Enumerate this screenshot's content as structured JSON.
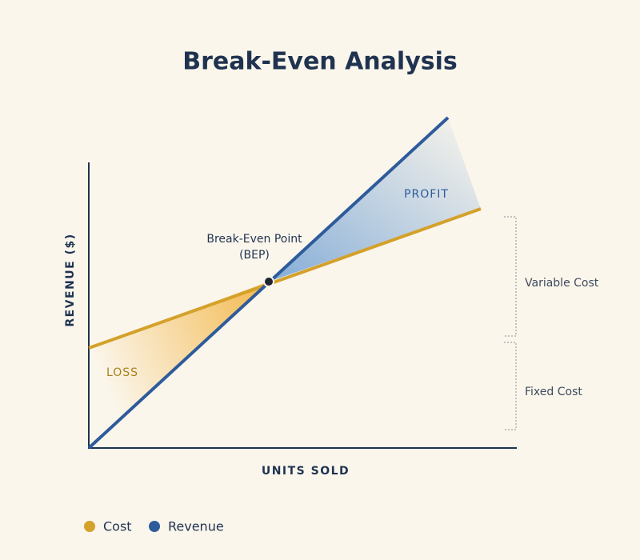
{
  "title": "Break-Even Analysis",
  "axes": {
    "y_label": "REVENUE ($)",
    "x_label": "UNITS SOLD"
  },
  "annotations": {
    "bep": [
      "Break-Even Point",
      "(BEP)"
    ],
    "profit": "PROFIT",
    "loss": "LOSS",
    "variable_cost": "Variable Cost",
    "fixed_cost": "Fixed Cost"
  },
  "legend": [
    {
      "label": "Cost",
      "color": "#d4a12a"
    },
    {
      "label": "Revenue",
      "color": "#2e5b9a"
    }
  ]
}
